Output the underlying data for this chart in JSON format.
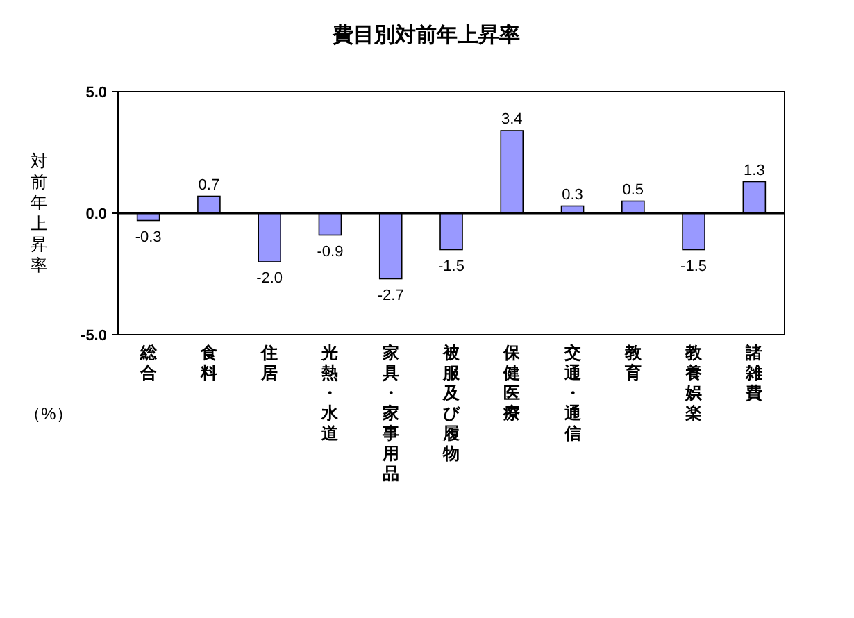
{
  "chart_data": {
    "type": "bar",
    "title": "費目別対前年上昇率",
    "ylabel": "対前年上昇率",
    "annotations": [
      "（%）"
    ],
    "categories": [
      "総合",
      "食料",
      "住居",
      "光熱・水道",
      "家具・家事用品",
      "被服及び履物",
      "保健医療",
      "交通・通信",
      "教育",
      "教養娯楽",
      "諸雑費"
    ],
    "values": [
      -0.3,
      0.7,
      -2.0,
      -0.9,
      -2.7,
      -1.5,
      3.4,
      0.3,
      0.5,
      -1.5,
      1.3
    ],
    "value_labels": [
      "-0.3",
      "0.7",
      "-2.0",
      "-0.9",
      "-2.7",
      "-1.5",
      "3.4",
      "0.3",
      "0.5",
      "-1.5",
      "1.3"
    ],
    "color": "#9999ff",
    "ylim": [
      -5,
      5
    ],
    "yticks": [
      {
        "value": 5,
        "label": "5.0"
      },
      {
        "value": 0,
        "label": "0.0"
      },
      {
        "value": -5,
        "label": "-5.0"
      }
    ],
    "ref_lines": [
      {
        "axis": "y",
        "value": 0,
        "color": "#000000"
      }
    ],
    "line_style": "solid"
  }
}
